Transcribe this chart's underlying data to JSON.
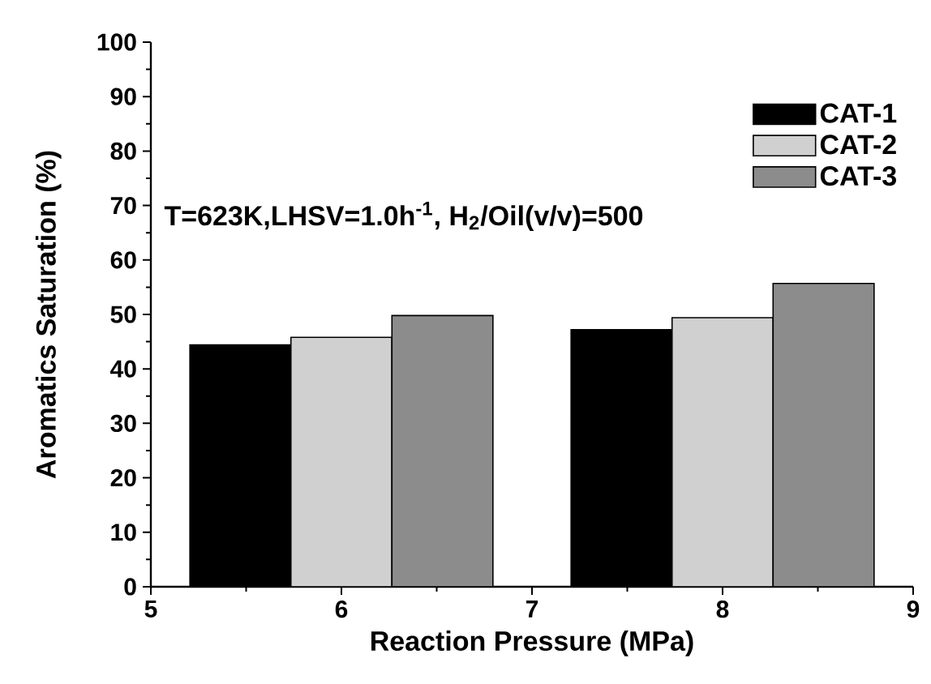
{
  "chart_data": {
    "type": "bar",
    "xlabel": "Reaction Pressure (MPa)",
    "ylabel": "Aromatics Saturation (%)",
    "x": [
      6,
      8
    ],
    "series": [
      {
        "name": "CAT-1",
        "color": "#000000",
        "values": [
          44.4,
          47.2
        ]
      },
      {
        "name": "CAT-2",
        "color": "#d0d0d0",
        "values": [
          45.8,
          49.4
        ]
      },
      {
        "name": "CAT-3",
        "color": "#8c8c8c",
        "values": [
          49.8,
          55.7
        ]
      }
    ],
    "xlim": [
      5,
      9
    ],
    "xticks": [
      5,
      6,
      7,
      8,
      9
    ],
    "ylim": [
      0,
      100
    ],
    "yticks": [
      0,
      10,
      20,
      30,
      40,
      50,
      60,
      70,
      80,
      90,
      100
    ],
    "legend": "top right",
    "annotations": [
      "T=623K,LHSV=1.0h$^{-1}$, H$_{2}$/Oil(v/v)=500"
    ]
  }
}
